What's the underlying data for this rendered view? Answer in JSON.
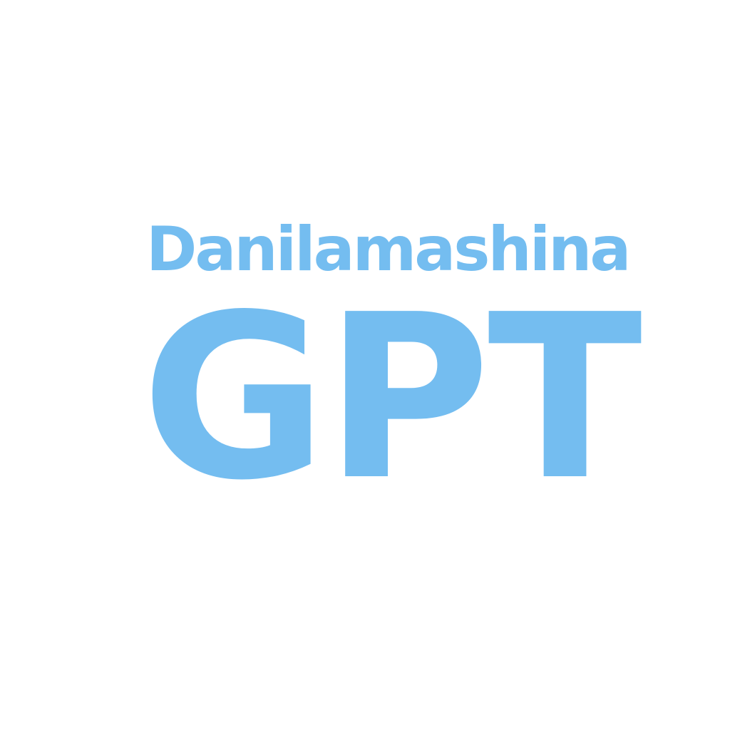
{
  "logo": {
    "name_text": "Danilamashina",
    "product_text": "GPT"
  },
  "colors": {
    "background": "#ffffff",
    "text": "#74bdf0"
  }
}
